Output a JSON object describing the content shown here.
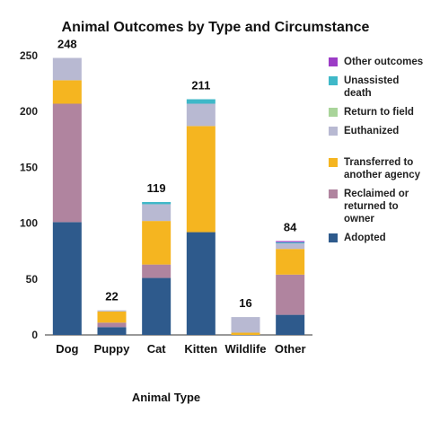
{
  "chart_data": {
    "type": "bar",
    "stacked": true,
    "title": "Animal Outcomes by Type and Circumstance",
    "xlabel": "Animal Type",
    "ylabel": "",
    "ylim": [
      0,
      250
    ],
    "yticks": [
      0,
      50,
      100,
      150,
      200,
      250
    ],
    "grid": false,
    "legend_position": "right",
    "categories": [
      "Dog",
      "Puppy",
      "Cat",
      "Kitten",
      "Wildlife",
      "Other"
    ],
    "totals": [
      "248",
      "22",
      "119",
      "211",
      "16",
      "84"
    ],
    "series": [
      {
        "name": "Adopted",
        "color": "#2e5a8c",
        "values": [
          101,
          7,
          51,
          92,
          0,
          18
        ]
      },
      {
        "name": "Reclaimed or returned to owner",
        "color": "#b0849f",
        "values": [
          106,
          4,
          12,
          0,
          0,
          36
        ]
      },
      {
        "name": "Transferred to another agency",
        "color": "#f5b520",
        "values": [
          21,
          10,
          39,
          95,
          2,
          23
        ]
      },
      {
        "name": "Euthanized",
        "color": "#b8b9d2",
        "values": [
          20,
          1,
          15,
          20,
          14,
          5
        ]
      },
      {
        "name": "Return to field",
        "color": "#a9d49a",
        "values": [
          0,
          0,
          0,
          0,
          0,
          0
        ]
      },
      {
        "name": "Unassisted death",
        "color": "#3fb8c8",
        "values": [
          0,
          0,
          2,
          4,
          0,
          1
        ]
      },
      {
        "name": "Other outcomes",
        "color": "#9c3cc6",
        "values": [
          0,
          0,
          0,
          0,
          0,
          1
        ]
      }
    ],
    "legend_order": [
      "Other outcomes",
      "Unassisted death",
      "Return to field",
      "Euthanized",
      "Transferred to another agency",
      "Reclaimed or returned to owner",
      "Adopted"
    ]
  }
}
